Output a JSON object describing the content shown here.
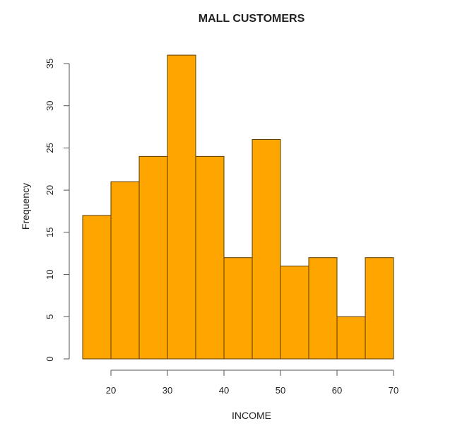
{
  "chart_data": {
    "type": "bar",
    "subtype": "histogram",
    "title": "MALL CUSTOMERS",
    "xlabel": "INCOME",
    "ylabel": "Frequency",
    "bin_edges": [
      15,
      20,
      25,
      30,
      35,
      40,
      45,
      50,
      55,
      60,
      65,
      70
    ],
    "categories": [
      "15-20",
      "20-25",
      "25-30",
      "30-35",
      "35-40",
      "40-45",
      "45-50",
      "50-55",
      "55-60",
      "60-65",
      "65-70"
    ],
    "values": [
      17,
      21,
      24,
      36,
      24,
      12,
      26,
      11,
      12,
      5,
      12
    ],
    "xticks": [
      20,
      30,
      40,
      50,
      60,
      70
    ],
    "yticks": [
      0,
      5,
      10,
      15,
      20,
      25,
      30,
      35
    ],
    "xlim": [
      15,
      70
    ],
    "ylim": [
      0,
      35
    ],
    "grid": false,
    "legend": null,
    "bar_color": "#FFA500",
    "bar_edge_color": "#5a3a00"
  }
}
